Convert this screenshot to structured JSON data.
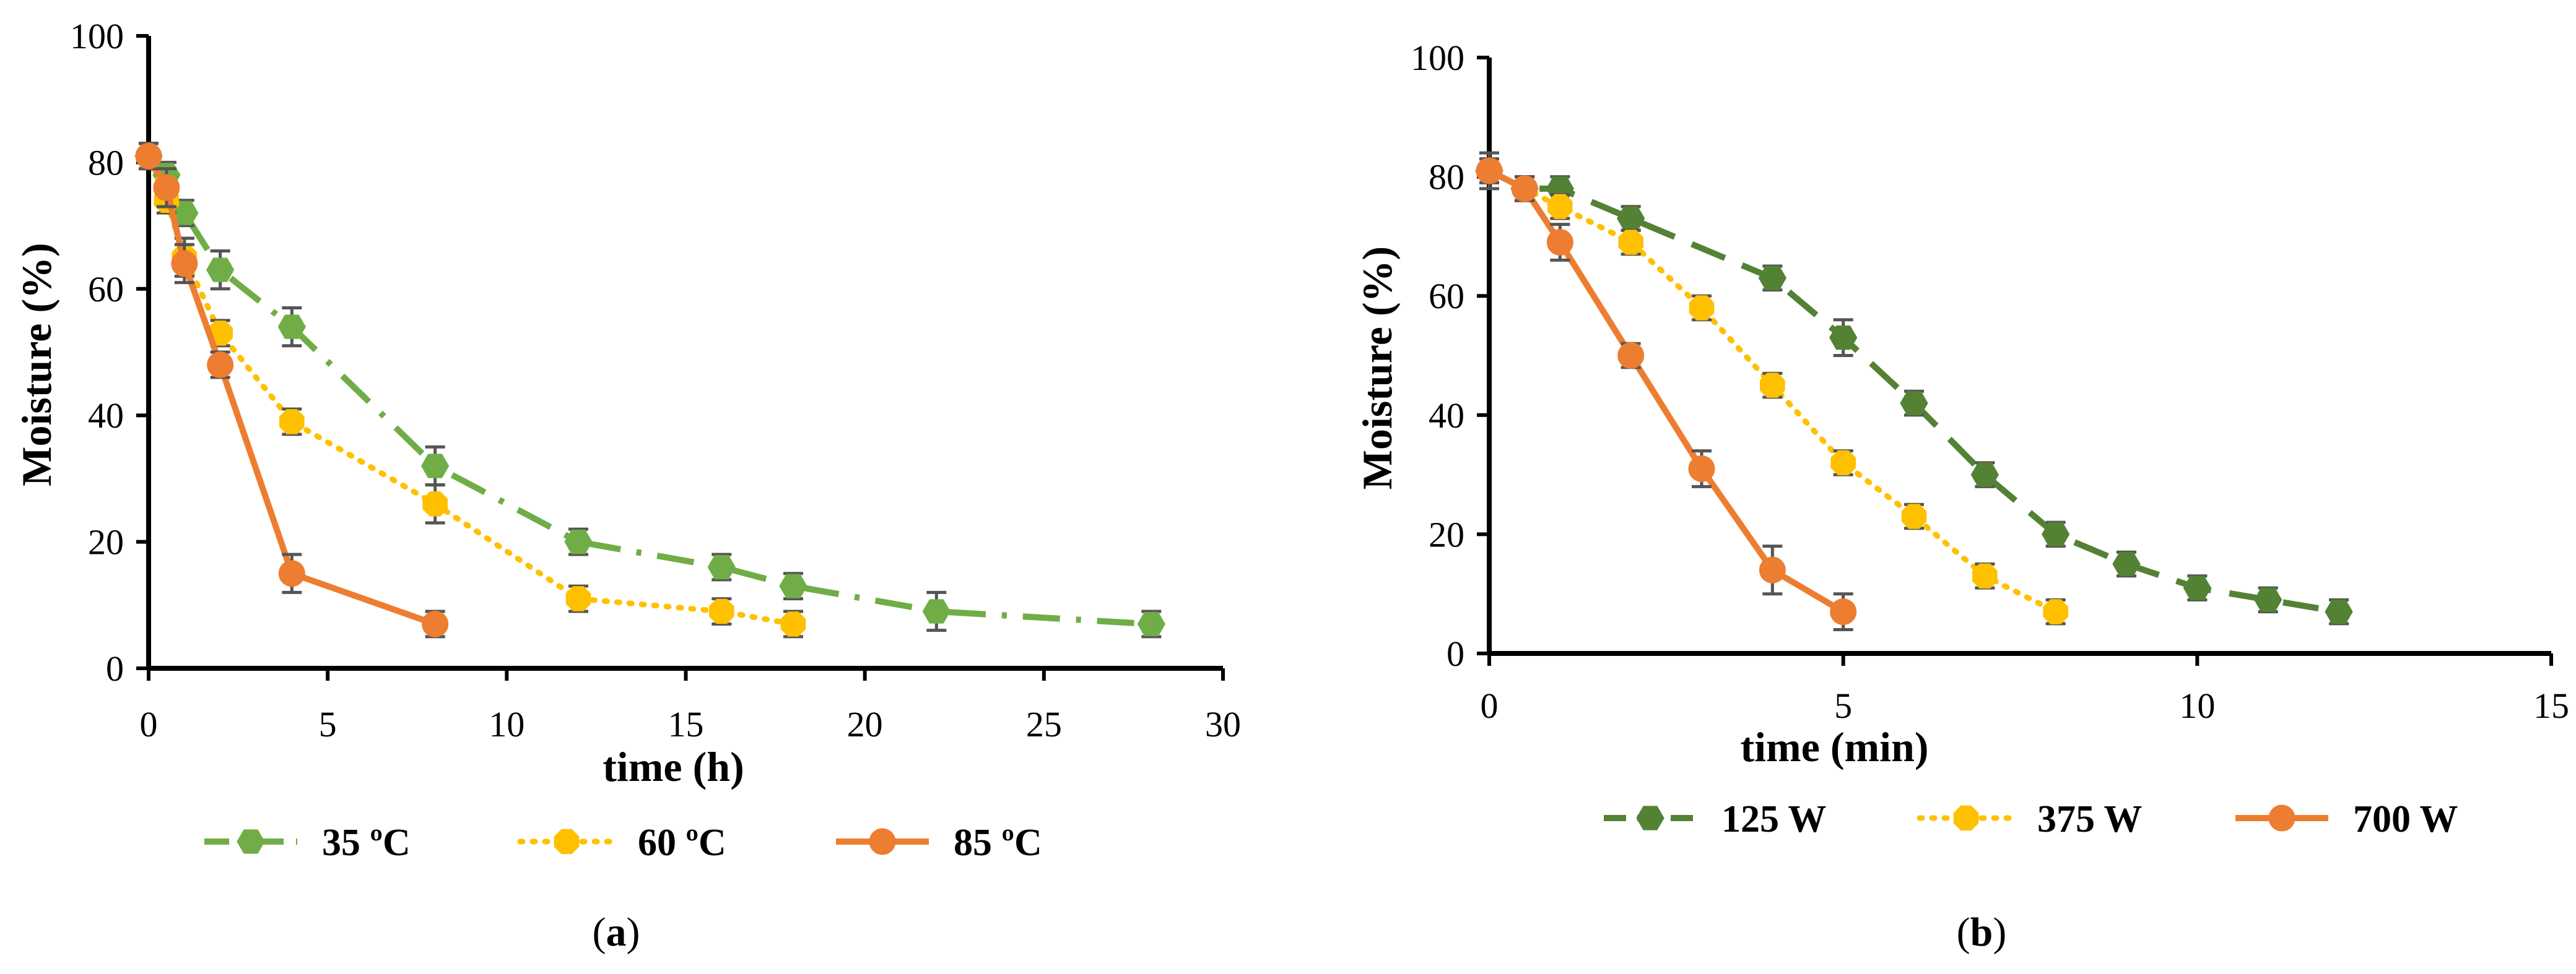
{
  "chart_data": [
    {
      "type": "line",
      "panel_label": "a",
      "xlabel": "time (h)",
      "ylabel": "Moisture (%)",
      "xlim": [
        0,
        30
      ],
      "ylim": [
        0,
        100
      ],
      "xticks": [
        0,
        5,
        10,
        15,
        20,
        25,
        30
      ],
      "yticks": [
        0,
        20,
        40,
        60,
        80,
        100
      ],
      "legend_position": "bottom",
      "series": [
        {
          "name": "35 ºC",
          "color": "#70ad47",
          "line_style": "dash-dot",
          "marker": "hexagon",
          "x": [
            0,
            0.5,
            1,
            2,
            4,
            8,
            12,
            16,
            18,
            22,
            28
          ],
          "y": [
            81,
            78,
            72,
            63,
            54,
            32,
            20,
            16,
            13,
            9,
            7
          ],
          "error": [
            2,
            2,
            2,
            3,
            3,
            3,
            2,
            2,
            2,
            3,
            2
          ]
        },
        {
          "name": "60 ºC",
          "color": "#ffc000",
          "line_style": "dotted",
          "marker": "octagon",
          "x": [
            0,
            0.5,
            1,
            2,
            4,
            8,
            12,
            16,
            18
          ],
          "y": [
            81,
            74,
            65,
            53,
            39,
            26,
            11,
            9,
            7
          ],
          "error": [
            2,
            2,
            3,
            2,
            2,
            3,
            2,
            2,
            2
          ]
        },
        {
          "name": "85 ºC",
          "color": "#ed7d31",
          "line_style": "solid",
          "marker": "circle",
          "x": [
            0,
            0.5,
            1,
            2,
            4,
            8
          ],
          "y": [
            81,
            76,
            64,
            48,
            15,
            7
          ],
          "error": [
            2,
            3,
            3,
            2,
            3,
            2
          ]
        }
      ]
    },
    {
      "type": "line",
      "panel_label": "b",
      "xlabel": "time (min)",
      "ylabel": "Moisture (%)",
      "xlim": [
        0,
        15
      ],
      "ylim": [
        0,
        100
      ],
      "xticks": [
        0,
        5,
        10,
        15
      ],
      "yticks": [
        0,
        20,
        40,
        60,
        80,
        100
      ],
      "legend_position": "bottom",
      "series": [
        {
          "name": "125 W",
          "color": "#548235",
          "line_style": "dashed",
          "marker": "hexagon",
          "x": [
            0,
            0.5,
            1,
            2,
            4,
            5,
            6,
            7,
            8,
            9,
            10,
            11,
            12
          ],
          "y": [
            81,
            78,
            78,
            73,
            63,
            53,
            42,
            30,
            20,
            15,
            11,
            9,
            7
          ],
          "error": [
            3,
            2,
            2,
            2,
            2,
            3,
            2,
            2,
            2,
            2,
            2,
            2,
            2
          ]
        },
        {
          "name": "375 W",
          "color": "#ffc000",
          "line_style": "dotted",
          "marker": "octagon",
          "x": [
            0,
            0.5,
            1,
            2,
            3,
            4,
            5,
            6,
            7,
            8
          ],
          "y": [
            81,
            78,
            75,
            69,
            58,
            45,
            32,
            23,
            13,
            7
          ],
          "error": [
            2,
            2,
            2,
            2,
            2,
            2,
            2,
            2,
            2,
            2
          ]
        },
        {
          "name": "700 W",
          "color": "#ed7d31",
          "line_style": "solid",
          "marker": "circle",
          "x": [
            0,
            0.5,
            1,
            2,
            3,
            4,
            5
          ],
          "y": [
            81,
            78,
            69,
            50,
            31,
            14,
            7
          ],
          "error": [
            2,
            2,
            3,
            2,
            3,
            4,
            3
          ]
        }
      ]
    }
  ]
}
